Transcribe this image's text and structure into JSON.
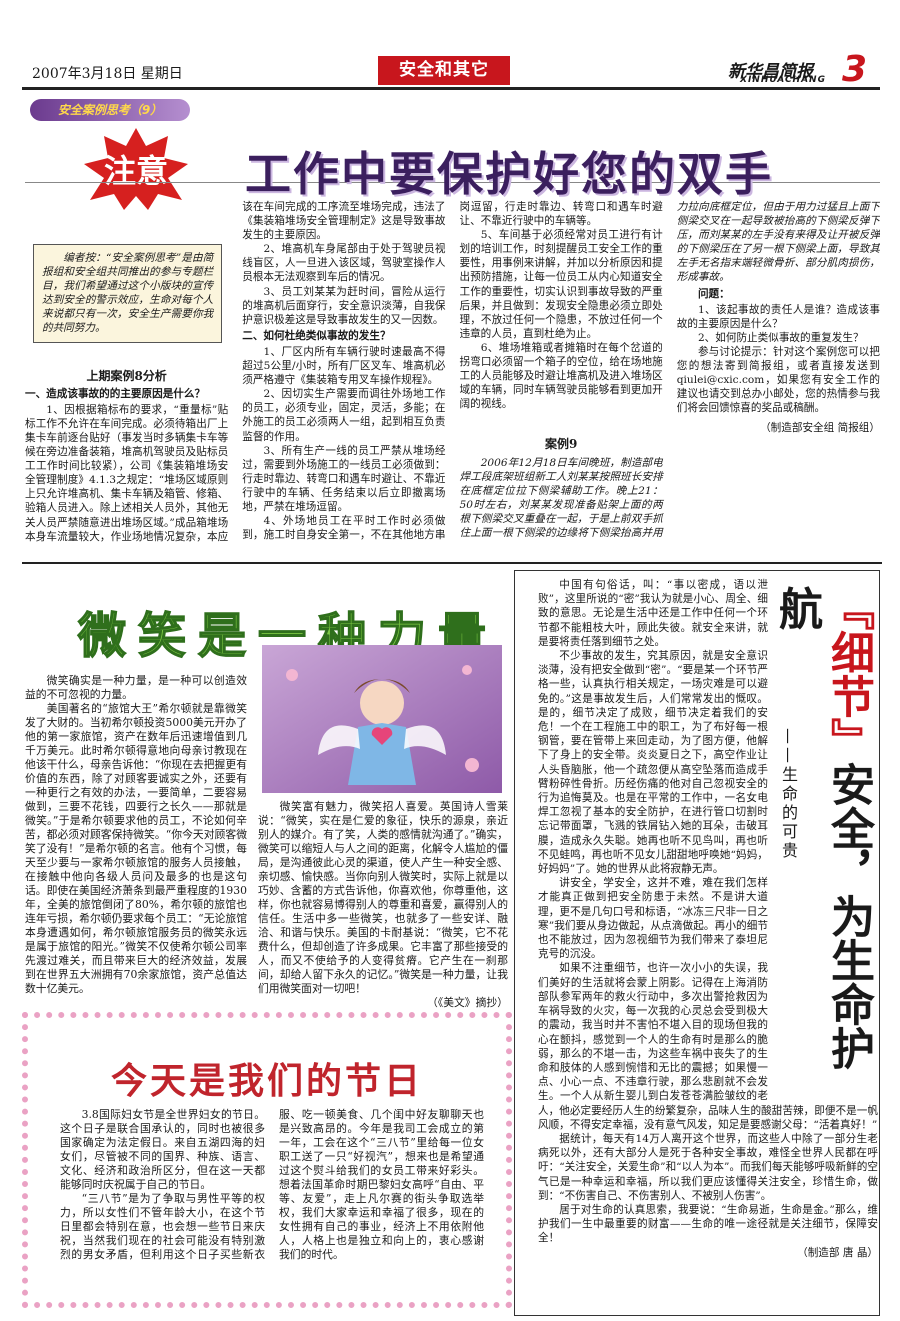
{
  "header": {
    "date": "2007年3月18日  星期日",
    "section": "安全和其它",
    "paper": "新华昌简报",
    "paper_en": "XINHUACHANG",
    "page": 3
  },
  "safety_case": {
    "tag": "安全案例思考（9）",
    "badge": "注意",
    "title": "工作中要保护好您的双手",
    "editor_note": "编者按：“安全案例思考”是由简报组和安全组共同推出的参与专题栏目，我们希望通过这个小版块的宣传达到安全的警示效应，生命对每个人来说都只有一次，安全生产需要你我的共同努力。",
    "last_case": {
      "title": "上期案例8分析",
      "section1": {
        "heading": "一、造成该事故的的主要原因是什么？",
        "paragraphs": [
          "1、因根据箱标布的要求，“重量标”贴标工作不允许在车间完成。必须待箱出厂上集卡车前逐台贴好（事发当时多辆集卡车等候在旁边准备装箱，堆高机驾驶员及贴标员工工作时间比较紧），公司《集装箱堆场安全管理制度》4.1.3之规定：“堆场区域原则上只允许堆高机、集卡车辆及箱管、修箱、验箱人员进入。除上述相关人员外，其他无关人员严禁随意进出堆场区域。”成品箱堆场本身车流量较大，作业场地情况复杂，本应该在车间完成的工序流至堆场完成，违法了《集装箱堆场安全管理制定》这是导致事故发生的主要原因。",
          "2、堆高机车身尾部由于处于驾驶员视线盲区，人一旦进入该区域，驾驶室操作人员根本无法观察到车后的情况。",
          "3、员工刘某某为赶时间，冒险从运行的堆高机后面穿行，安全意识淡薄，自我保护意识极差这是导致事故发生的又一因数。"
        ]
      },
      "section2": {
        "heading": "二、如何杜绝类似事故的发生？",
        "paragraphs": [
          "1、厂区内所有车辆行驶时速最高不得超过5公里/小时，所有厂区叉车、堆高机必须严格遵守《集装箱专用叉车操作规程》。",
          "2、因切实生产需要而调往外场地工作的员工，必须专业，固定，灵活，多能；在外施工的员工必须两人一组，起到相互负责监督的作用。",
          "3、所有生产一线的员工严禁从堆场经过，需要到外场施工的一线员工必须做到：行走时靠边、转弯口和遇车时避让、不靠近行驶中的车辆、任务结束以后立即撤离场地，严禁在堆场逗留。",
          "4、外场地员工在平时工作时必须做到，施工时自身安全第一，不在其他地方串岗逗留，行走时靠边、转弯口和遇车时避让、不靠近行驶中的车辆等。",
          "5、车间基于必须经常对员工进行有计划的培训工作，时刻提醒员工安全工作的重要性，用事例来讲解，并加以分析原因和提出预防措施，让每一位员工从内心知道安全工作的重要性，切实认识到事故导致的严重后果，并且做到：发现安全隐患必须立即处理，不放过任何一个隐患，不放过任何一个违章的人员，直到杜绝为止。",
          "6、堆场堆箱或者摊箱时在每个岔道的拐弯口必须留一个箱子的空位，给在场地施工的人员能够及时避让堆高机及进入堆场区域的车辆，同时车辆驾驶员能够看到更加开阔的视线。"
        ]
      }
    },
    "case9": {
      "title": "案例9",
      "text": "2006年12月18日车间晚班，制造部电焊工段底架班组新工人刘某某按照班长安排在底框定位拉下侧梁辅助工作。晚上21：50时左右，刘某某发现准备贴架上面的两根下侧梁交叉重叠在一起，于是上前双手抓住上面一根下侧梁的边缘将下侧梁抬高并用力拉向底框定位，但由于用力过猛且上面下侧梁交叉在一起导致被抬高的下侧梁反弹下压，而刘某某的左手没有来得及让开被反弹的下侧梁压在了另一根下侧梁上面，导致其左手无名指末端轻微骨折、部分肌肉损伤，形成事故。",
      "questions_label": "问题：",
      "questions": [
        "1、该起事故的责任人是谁？造成该事故的主要原因是什么？",
        "2、如何防止类似事故的重复发生？"
      ],
      "tip": "参与讨论提示：针对这个案例您可以把您的想法寄到简报组，或者直接发送到qiulei@cxic.com，如果您有安全工作的建议也请交到总办小邮处，您的热情参与我们将会回馈惊喜的奖品或稿酬。",
      "credit": "（制造部安全组  简报组）"
    }
  },
  "smile": {
    "title": "微笑是一种力量",
    "paragraphs": [
      "微笑确实是一种力量，是一种可以创造效益的不可忽视的力量。",
      "美国著名的“旅馆大王”希尔顿就是靠微笑发了大财的。当初希尔顿投资5000美元开办了他的第一家旅馆，资产在数年后迅速增值到几千万美元。此时希尔顿得意地向母亲讨教现在他该干什么，母亲告诉他：“你现在去把握更有价值的东西，除了对顾客要诚实之外，还要有一种更行之有效的办法，一要简单，二要容易做到，三要不花钱，四要行之长久——那就是微笑。”于是希尔顿要求他的员工，不论如何辛苦，都必须对顾客保持微笑。“你今天对顾客微笑了没有！”是希尔顿的名言。他有个习惯，每天至少要与一家希尔顿旅馆的服务人员接触，在接触中他向各级人员问及最多的也是这句话。即使在美国经济萧条到最严重程度的1930年，全美的旅馆倒闭了80%，希尔顿的旅馆也连年亏损，希尔顿仍要求每个员工：“无论旅馆本身遭遇如何，希尔顿旅馆服务员的微笑永远是属于旅馆的阳光。”微笑不仅使希尔顿公司率先渡过难关，而且带来巨大的经济效益，发展到在世界五大洲拥有70余家旅馆，资产总值达数十亿美元。",
      "微笑富有魅力，微笑招人喜爱。英国诗人雪莱说：“微笑，实在是仁爱的象征，快乐的源泉，亲近别人的媒介。有了笑，人类的感情就沟通了。”确实，微笑可以缩短人与人之间的距离，化解令人尴尬的僵局，是沟通彼此心灵的渠道，使人产生一种安全感、亲切感、愉快感。当你向别人微笑时，实际上就是以巧妙、含蓄的方式告诉他，你喜欢他，你尊重他，这样，你也就容易博得别人的尊重和喜爱，赢得别人的信任。生活中多一些微笑，也就多了一些安详、融洽、和谐与快乐。美国的卡耐基说：“微笑，它不花费什么，但却创造了许多成果。它丰富了那些接受的人，而又不使给予的人变得贫瘠。它产生在一刹那间，却给人留下永久的记忆。”微笑是一种力量，让我们用微笑面对一切吧！"
    ],
    "source": "（《美文》摘抄）"
  },
  "holiday": {
    "title": "今天是我们的节日",
    "paragraphs": [
      "3.8国际妇女节是全世界妇女的节日。这个日子是联合国承认的，同时也被很多国家确定为法定假日。来自五湖四海的妇女们，尽管被不同的国界、种族、语言、文化、经济和政治所区分，但在这一天都能够同时庆祝属于自己的节日。",
      "“三八节”是为了争取与男性平等的权力，所以女性们不管年龄大小，在这个节日里都会特别在意，也会想一些节日来庆祝，当然我们现在的社会可能没有特别激烈的男女矛盾，但利用这个日子买些新衣服、吃一顿美食、几个闺中好友聊聊天也是兴致高昂的。今年是我司工会成立的第一年，工会在这个“三八节”里给每一位女职工送了一只“好视汽”，想来也是希望通过这个熨斗给我们的女员工带来好彩头。想着法国革命时期巴黎妇女高呼“自由、平等、友爱”，走上凡尔赛的街头争取选举权，我们大家幸运和幸福了很多，现在的女性拥有自己的事业，经济上不用依附他人，人格上也是独立和向上的，衷心感谢我们的时代。"
    ]
  },
  "detail": {
    "title_red": "『细节』",
    "title_black": "安全，为生命护航",
    "subtitle": "——生命的可贵",
    "paragraphs": [
      "中国有句俗话，叫：“事以密成，语以泄败”，这里所说的“密”我认为就是小心、周全、细致的意思。无论是生活中还是工作中任何一个环节都不能粗枝大叶，顾此失彼。就安全来讲，就是要将责任落到细节之处。",
      "不少事故的发生，究其原因，就是安全意识淡薄，没有把安全做到“密”。“要是某一个环节严格一些，认真执行相关规定，一场灾难是可以避免的。”这是事故发生后，人们常常发出的慨叹。是的，细节决定了成败，细节决定着我们的安危！一个在工程施工中的职工，为了布好每一根钢管，要在管带上来回走动，为了图方便，他解下了身上的安全带。炎炎夏日之下，高空作业让人头昏脑胀，他一个疏忽便从高空坠落而造成手臂粉碎性骨折。历经伤痛的他对自己忽视安全的行为追悔莫及。也是在平常的工作中，一名女电焊工忽视了基本的安全防护，在进行管口切割时忘记带面罩，飞溅的铁屑钻入她的耳朵，击破耳膜，造成永久失聪。她再也听不见鸟叫，再也听不见蛙鸣，再也听不见女儿甜甜地呼唤她“妈妈，好妈妈”了。她的世界从此将寂静无声。",
      "讲安全，学安全，这并不难，难在我们怎样才能真正做到把安全防患于未然。不是讲大道理，更不是几句口号和标语，“冰冻三尺非一日之寒”我们要从身边做起，从点滴做起。再小的细节也不能放过，因为忽视细节为我们带来了泰坦尼克号的沉没。",
      "如果不注重细节，也许一次小小的失误，我们美好的生活就将会蒙上阴影。记得在上海消防部队参军两年的救火行动中，多次出警抢救因为车祸导致的火灾，每一次我的心灵总会受到极大的震动，我当时并不害怕不堪入目的现场但我的心在颤抖，感觉到一个人的生命有时是那么的脆弱，那么的不堪一击，为这些车祸中丧失了的生命和肢体的人感到惋惜和无比的震撼；如果慢一点、小心一点、不违章行驶，那么悲剧就不会发生。一个人从新生婴儿到白发苍苍满脸皱纹的老人，他必定要经历人生的纷繁复杂，品味人生的酸甜苦辣，即便不是一帆风顺，不得安定幸福，没有意气风发，知足是要感谢父母：“活着真好！”",
      "据统计，每天有14万人离开这个世界，而这些人中除了一部分生老病死以外，还有大部分人是死于各种安全事故，难怪全世界人民都在呼吁：“关注安全，关爱生命”和“以人为本”。而我们每天能够呼吸新鲜的空气已是一种幸运和幸福，所以我们更应该懂得关注安全，珍惜生命，做到：“不伤害自己、不伤害别人、不被别人伤害”。",
      "居于对生命的认真思索，我要说：“生命易逝，生命是金。”那么，维护我们一生中最重要的财富——生命的唯一途径就是关注细节，保障安全！"
    ],
    "credit": "（制造部  唐  晶）"
  }
}
